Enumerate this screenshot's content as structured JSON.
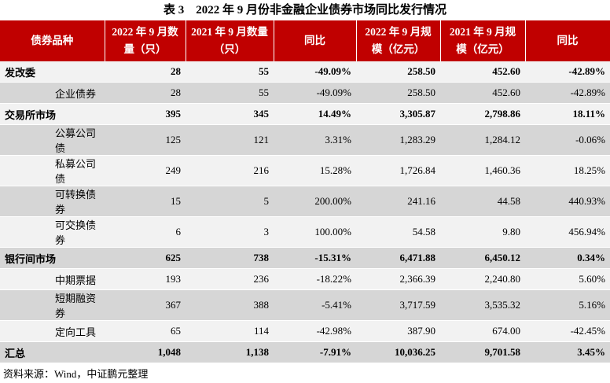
{
  "title": "表 3　2022 年 9 月份非金融企业债券市场同比发行情况",
  "table": {
    "header": [
      "债券品种",
      "2022 年 9 月数量（只）",
      "2021 年 9 月数量（只）",
      "同比",
      "2022 年 9 月规模（亿元）",
      "2021 年 9 月规模（亿元）",
      "同比"
    ],
    "rows": [
      [
        "发改委",
        "28",
        "55",
        "-49.09%",
        "258.50",
        "452.60",
        "-42.89%"
      ],
      [
        "企业债券",
        "28",
        "55",
        "-49.09%",
        "258.50",
        "452.60",
        "-42.89%"
      ],
      [
        "交易所市场",
        "395",
        "345",
        "14.49%",
        "3,305.87",
        "2,798.86",
        "18.11%"
      ],
      [
        "公募公司债",
        "125",
        "121",
        "3.31%",
        "1,283.29",
        "1,284.12",
        "-0.06%"
      ],
      [
        "私募公司债",
        "249",
        "216",
        "15.28%",
        "1,726.84",
        "1,460.36",
        "18.25%"
      ],
      [
        "可转换债券",
        "15",
        "5",
        "200.00%",
        "241.16",
        "44.58",
        "440.93%"
      ],
      [
        "可交换债券",
        "6",
        "3",
        "100.00%",
        "54.58",
        "9.80",
        "456.94%"
      ],
      [
        "银行间市场",
        "625",
        "738",
        "-15.31%",
        "6,471.88",
        "6,450.12",
        "0.34%"
      ],
      [
        "中期票据",
        "193",
        "236",
        "-18.22%",
        "2,366.39",
        "2,240.80",
        "5.60%"
      ],
      [
        "短期融资券",
        "367",
        "388",
        "-5.41%",
        "3,717.59",
        "3,535.32",
        "5.16%"
      ],
      [
        "定向工具",
        "65",
        "114",
        "-42.98%",
        "387.90",
        "674.00",
        "-42.45%"
      ],
      [
        "汇总",
        "1,048",
        "1,138",
        "-7.91%",
        "10,036.25",
        "9,701.58",
        "3.45%"
      ]
    ]
  },
  "source": "资料来源：Wind，中证鹏元整理"
}
